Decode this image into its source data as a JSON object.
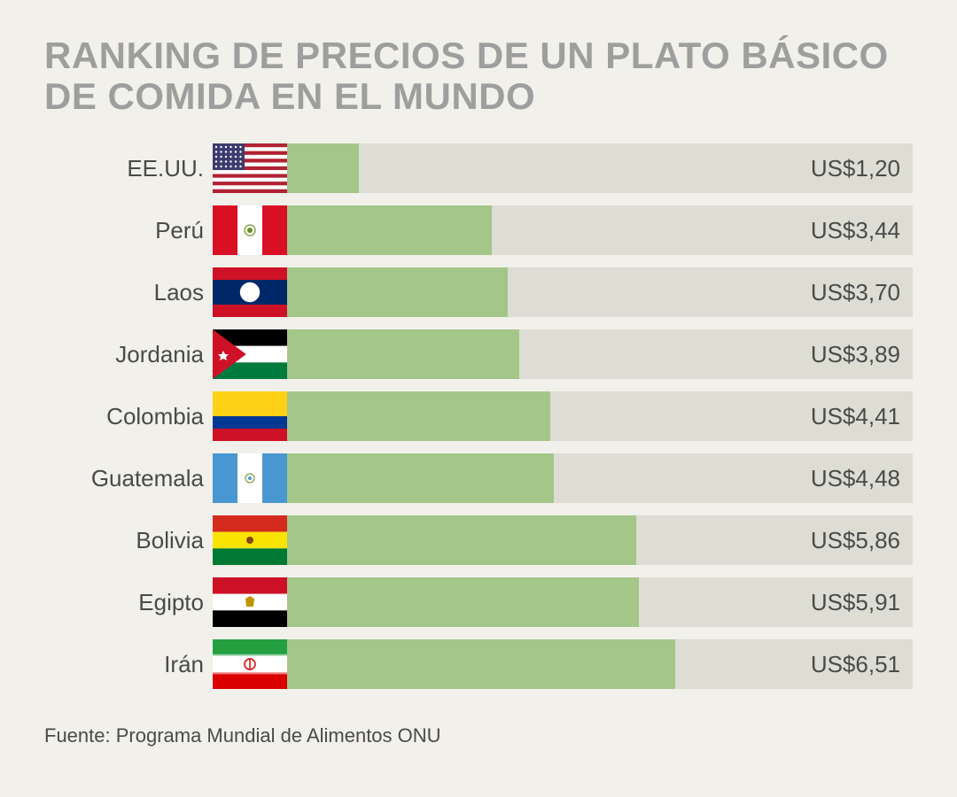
{
  "title": "RANKING DE PRECIOS DE UN PLATO BÁSICO DE COMIDA EN EL MUNDO",
  "source": "Fuente: Programa Mundial de Alimentos ONU",
  "chart": {
    "type": "bar",
    "bar_color": "#a4c689",
    "track_color": "#ddddd3",
    "background_color": "#f1f0ea",
    "title_color": "#9e9e9e",
    "text_color": "#4a4a4a",
    "title_fontsize": 42,
    "label_fontsize": 26,
    "max_value": 10.5,
    "rows": [
      {
        "country": "EE.UU.",
        "value": 1.2,
        "display": "US$1,20",
        "flag": "us"
      },
      {
        "country": "Perú",
        "value": 3.44,
        "display": "US$3,44",
        "flag": "pe"
      },
      {
        "country": "Laos",
        "value": 3.7,
        "display": "US$3,70",
        "flag": "la"
      },
      {
        "country": "Jordania",
        "value": 3.89,
        "display": "US$3,89",
        "flag": "jo"
      },
      {
        "country": "Colombia",
        "value": 4.41,
        "display": "US$4,41",
        "flag": "co"
      },
      {
        "country": "Guatemala",
        "value": 4.48,
        "display": "US$4,48",
        "flag": "gt"
      },
      {
        "country": "Bolivia",
        "value": 5.86,
        "display": "US$5,86",
        "flag": "bo"
      },
      {
        "country": "Egipto",
        "value": 5.91,
        "display": "US$5,91",
        "flag": "eg"
      },
      {
        "country": "Irán",
        "value": 6.51,
        "display": "US$6,51",
        "flag": "ir"
      }
    ]
  }
}
